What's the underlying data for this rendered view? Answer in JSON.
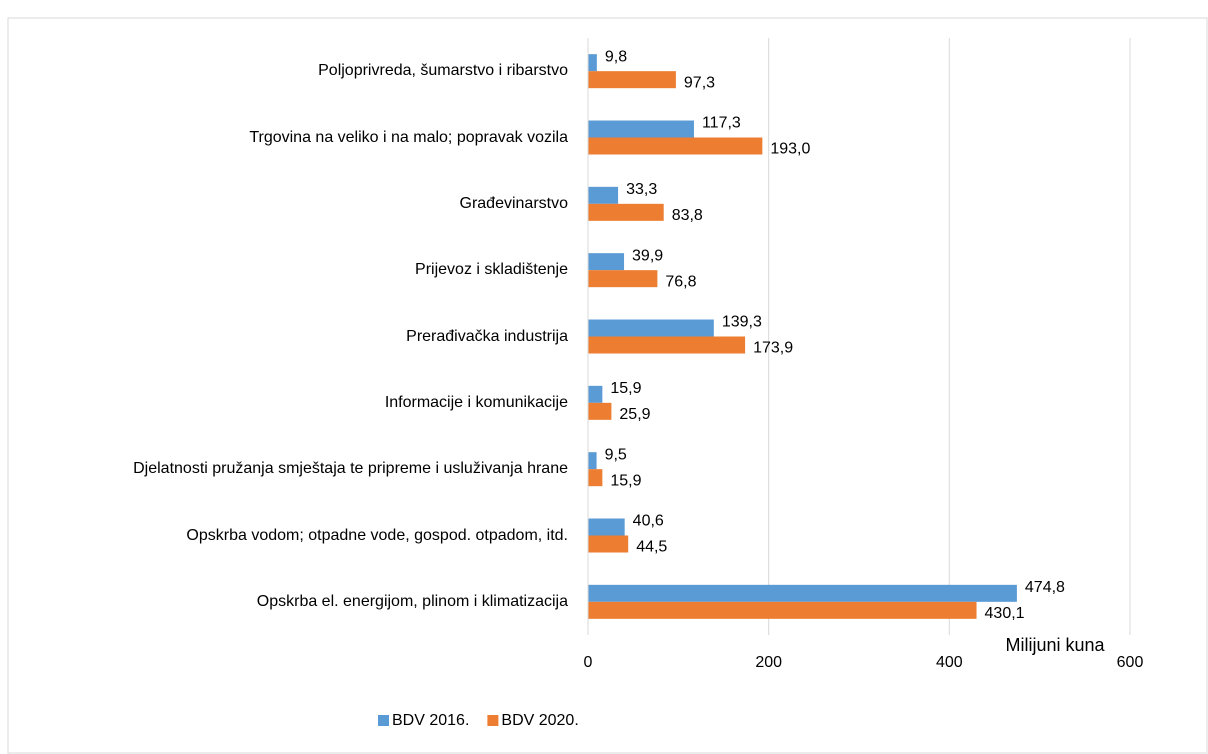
{
  "chart_data": {
    "type": "bar",
    "orientation": "horizontal",
    "categories": [
      "Poljoprivreda, šumarstvo i ribarstvo",
      "Trgovina na veliko i na malo; popravak vozila",
      "Građevinarstvo",
      "Prijevoz i skladištenje",
      "Prerađivačka industrija",
      "Informacije i komunikacije",
      "Djelatnosti pružanja smještaja te pripreme i usluživanja hrane",
      "Opskrba vodom; otpadne vode, gospod. otpadom, itd.",
      "Opskrba el. energijom, plinom i klimatizacija"
    ],
    "series": [
      {
        "name": "BDV 2016.",
        "color": "#5b9bd5",
        "values": [
          9.8,
          117.3,
          33.3,
          39.9,
          139.3,
          15.9,
          9.5,
          40.6,
          474.8
        ],
        "value_labels": [
          "9,8",
          "117,3",
          "33,3",
          "39,9",
          "139,3",
          "15,9",
          "9,5",
          "40,6",
          "474,8"
        ]
      },
      {
        "name": "BDV 2020.",
        "color": "#ed7d31",
        "values": [
          97.3,
          193.0,
          83.8,
          76.8,
          173.9,
          25.9,
          15.9,
          44.5,
          430.1
        ],
        "value_labels": [
          "97,3",
          "193,0",
          "83,8",
          "76,8",
          "173,9",
          "25,9",
          "15,9",
          "44,5",
          "430,1"
        ]
      }
    ],
    "xlim": [
      0,
      600
    ],
    "xticks": [
      0,
      200,
      400,
      600
    ],
    "xlabel": "Milijuni kuna",
    "grid": true,
    "legend": "bottom"
  }
}
